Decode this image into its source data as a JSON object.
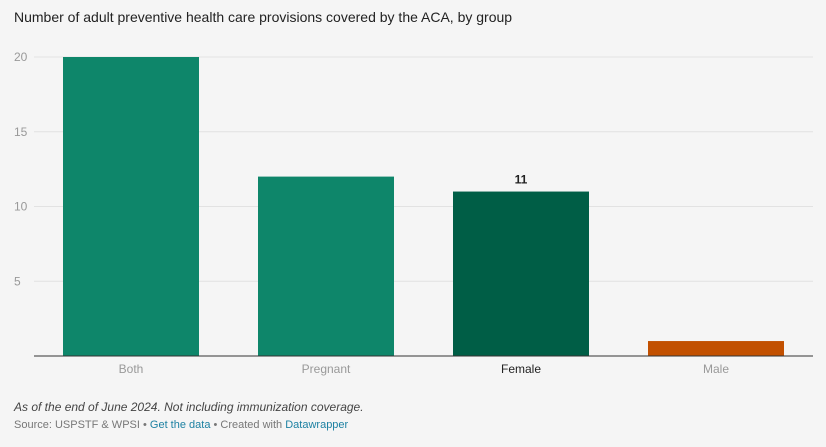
{
  "chart_data": {
    "type": "bar",
    "title": "Number of adult preventive health care provisions covered by the ACA, by group",
    "categories": [
      "Both",
      "Pregnant",
      "Female",
      "Male"
    ],
    "values": [
      20,
      12,
      11,
      1
    ],
    "highlighted_category": "Female",
    "data_labels": [
      {
        "category": "Female",
        "text": "11"
      }
    ],
    "colors": [
      "#0e866a",
      "#0e866a",
      "#005e46",
      "#c25000"
    ],
    "ylim": [
      0,
      20
    ],
    "yticks": [
      5,
      10,
      15,
      20
    ],
    "xlabel": "",
    "ylabel": "",
    "grid": true,
    "legend": "none"
  },
  "footer": {
    "notes": "As of the end of June 2024. Not including immunization coverage.",
    "source_prefix": "Source: USPSTF & WPSI •",
    "get_data_label": "Get the data",
    "created_with": "• Created with",
    "datawrapper_label": "Datawrapper"
  }
}
